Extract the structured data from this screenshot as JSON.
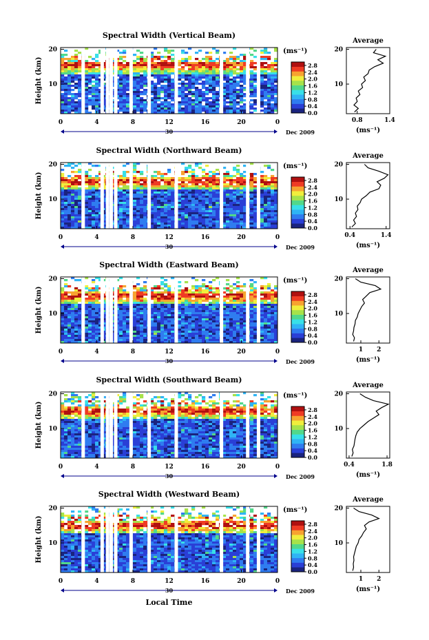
{
  "figure": {
    "shared_xlabel": "Local Time",
    "date_label": "Dec 2009",
    "day_label": "30",
    "ylabel": "Height (km)",
    "unit_label": "(ms⁻¹)",
    "avg_title": "Average",
    "avg_xunit": "(ms⁻¹)",
    "x_ticks": [
      "0",
      "4",
      "8",
      "12",
      "16",
      "20",
      "0"
    ],
    "y_ticks": [
      "20",
      "10"
    ],
    "colorbar_ticks": [
      "2.8",
      "2.4",
      "2.0",
      "1.6",
      "1.2",
      "0.8",
      "0.4",
      "0.0"
    ],
    "colormap": [
      "#1a237e",
      "#2a3fd6",
      "#2f7cf0",
      "#2fb4f5",
      "#38e0e8",
      "#52d88a",
      "#a6e24a",
      "#f0ee3c",
      "#f7a330",
      "#ef3b24",
      "#b01010"
    ]
  },
  "chart_data": [
    {
      "type": "heatmap",
      "title": "Spectral Width (Vertical Beam)",
      "xlabel": "Local Time",
      "ylabel": "Height (km)",
      "xlim": [
        0,
        24
      ],
      "ylim": [
        1.5,
        20.5
      ],
      "colorbar_label": "(ms⁻¹)",
      "colorbar_range": [
        0.0,
        3.0
      ],
      "gap_hours": [
        2.5,
        4.6,
        5.2,
        5.6,
        6.1,
        7.8,
        9.8,
        12.8,
        17.8,
        20.7,
        21.9
      ],
      "average_profile": {
        "title": "Average",
        "xlabel": "(ms⁻¹)",
        "xlim": [
          0.6,
          1.4
        ],
        "x_ticks": [
          "0.8",
          "1.4"
        ],
        "height_km": [
          2,
          3,
          4,
          5,
          6,
          7,
          8,
          9,
          10,
          11,
          12,
          13,
          14,
          15,
          16,
          17,
          18,
          19,
          20
        ],
        "values": [
          0.75,
          0.82,
          0.74,
          0.8,
          0.78,
          0.85,
          0.82,
          0.9,
          0.88,
          0.95,
          0.92,
          1.0,
          1.02,
          1.12,
          1.28,
          1.18,
          1.32,
          1.1,
          1.15
        ]
      }
    },
    {
      "type": "heatmap",
      "title": "Spectral Width (Northward Beam)",
      "xlabel": "Local Time",
      "ylabel": "Height (km)",
      "xlim": [
        0,
        24
      ],
      "ylim": [
        1.5,
        20.5
      ],
      "colorbar_label": "(ms⁻¹)",
      "colorbar_range": [
        0.0,
        3.0
      ],
      "gap_hours": [
        2.5,
        4.6,
        5.2,
        5.6,
        6.1,
        7.8,
        9.8,
        12.8,
        17.8,
        20.7,
        21.9
      ],
      "average_profile": {
        "title": "Average",
        "xlabel": "(ms⁻¹)",
        "xlim": [
          0.3,
          1.5
        ],
        "x_ticks": [
          "0.4",
          "1.4"
        ],
        "height_km": [
          2,
          3,
          4,
          5,
          6,
          7,
          8,
          9,
          10,
          11,
          12,
          13,
          14,
          15,
          16,
          17,
          18,
          19,
          20
        ],
        "values": [
          0.45,
          0.55,
          0.5,
          0.58,
          0.55,
          0.62,
          0.6,
          0.68,
          0.72,
          0.85,
          0.95,
          1.2,
          1.25,
          1.15,
          1.35,
          1.45,
          1.2,
          0.9,
          0.8
        ]
      }
    },
    {
      "type": "heatmap",
      "title": "Spectral Width (Eastward Beam)",
      "xlabel": "Local Time",
      "ylabel": "Height (km)",
      "xlim": [
        0,
        24
      ],
      "ylim": [
        1.5,
        20.5
      ],
      "colorbar_label": "(ms⁻¹)",
      "colorbar_range": [
        0.0,
        3.0
      ],
      "gap_hours": [
        2.5,
        4.6,
        5.2,
        5.6,
        6.1,
        7.8,
        9.8,
        12.8,
        17.8,
        20.7,
        21.9
      ],
      "average_profile": {
        "title": "Average",
        "xlabel": "(ms⁻¹)",
        "xlim": [
          0.2,
          2.6
        ],
        "x_ticks": [
          "1",
          "2"
        ],
        "height_km": [
          2,
          3,
          4,
          5,
          6,
          7,
          8,
          9,
          10,
          11,
          12,
          13,
          14,
          15,
          16,
          17,
          18,
          19,
          20
        ],
        "values": [
          0.6,
          0.65,
          0.55,
          0.6,
          0.62,
          0.68,
          0.7,
          0.8,
          0.85,
          0.95,
          1.05,
          1.2,
          1.1,
          1.3,
          1.5,
          2.1,
          1.8,
          1.0,
          0.7
        ]
      }
    },
    {
      "type": "heatmap",
      "title": "Spectral Width (Southward Beam)",
      "xlabel": "Local Time",
      "ylabel": "Height (km)",
      "xlim": [
        0,
        24
      ],
      "ylim": [
        1.5,
        20.5
      ],
      "colorbar_label": "(ms⁻¹)",
      "colorbar_range": [
        0.0,
        3.0
      ],
      "gap_hours": [
        2.5,
        4.6,
        5.2,
        5.6,
        6.1,
        7.8,
        9.8,
        12.8,
        17.8,
        20.7,
        21.9
      ],
      "average_profile": {
        "title": "Average",
        "xlabel": "(ms⁻¹)",
        "xlim": [
          0.3,
          1.9
        ],
        "x_ticks": [
          "0.4",
          "1.8"
        ],
        "height_km": [
          2,
          3,
          4,
          5,
          6,
          7,
          8,
          9,
          10,
          11,
          12,
          13,
          14,
          15,
          16,
          17,
          18,
          19,
          20
        ],
        "values": [
          0.5,
          0.55,
          0.52,
          0.58,
          0.6,
          0.62,
          0.65,
          0.7,
          0.8,
          0.95,
          1.1,
          1.3,
          1.5,
          1.4,
          1.6,
          1.85,
          1.3,
          1.0,
          0.8
        ]
      }
    },
    {
      "type": "heatmap",
      "title": "Spectral Width (Westward Beam)",
      "xlabel": "Local Time",
      "ylabel": "Height (km)",
      "xlim": [
        0,
        24
      ],
      "ylim": [
        1.5,
        20.5
      ],
      "colorbar_label": "(ms⁻¹)",
      "colorbar_range": [
        0.0,
        3.0
      ],
      "gap_hours": [
        2.5,
        4.6,
        5.2,
        5.6,
        6.1,
        7.8,
        9.8,
        12.8,
        17.8,
        20.7,
        21.9
      ],
      "average_profile": {
        "title": "Average",
        "xlabel": "(ms⁻¹)",
        "xlim": [
          0.2,
          2.6
        ],
        "x_ticks": [
          "1",
          "2"
        ],
        "height_km": [
          2,
          3,
          4,
          5,
          6,
          7,
          8,
          9,
          10,
          11,
          12,
          13,
          14,
          15,
          16,
          17,
          18,
          19,
          20
        ],
        "values": [
          0.55,
          0.6,
          0.58,
          0.62,
          0.6,
          0.65,
          0.7,
          0.75,
          0.85,
          0.9,
          1.05,
          1.15,
          1.3,
          1.2,
          1.45,
          2.0,
          1.6,
          0.9,
          0.6
        ]
      }
    }
  ]
}
